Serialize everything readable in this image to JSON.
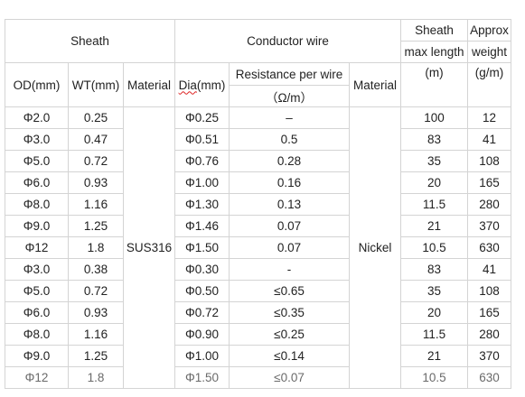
{
  "headers": {
    "sheath": "Sheath",
    "conductor_wire": "Conductor wire",
    "sheath_top": "Sheath",
    "sheath_mid": "max length",
    "sheath_unit": "(m)",
    "approx_top": "Approx",
    "approx_mid": "weight",
    "approx_unit": "(g/m)",
    "od": "OD(mm)",
    "wt": "WT(mm)",
    "material": "Material",
    "dia_prefix": "Dia",
    "dia_suffix": "(mm)",
    "resistance": "Resistance per wire",
    "resistance_unit": "（Ω/m）",
    "material2": "Material"
  },
  "sheath_material": "SUS316",
  "conductor_material": "Nickel",
  "rows": [
    {
      "od": "Φ2.0",
      "wt": "0.25",
      "dia": "Φ0.25",
      "res": "–",
      "len": "100",
      "wgt": "12"
    },
    {
      "od": "Φ3.0",
      "wt": "0.47",
      "dia": "Φ0.51",
      "res": "0.5",
      "len": "83",
      "wgt": "41"
    },
    {
      "od": "Φ5.0",
      "wt": "0.72",
      "dia": "Φ0.76",
      "res": "0.28",
      "len": "35",
      "wgt": "108"
    },
    {
      "od": "Φ6.0",
      "wt": "0.93",
      "dia": "Φ1.00",
      "res": "0.16",
      "len": "20",
      "wgt": "165"
    },
    {
      "od": "Φ8.0",
      "wt": "1.16",
      "dia": "Φ1.30",
      "res": "0.13",
      "len": "11.5",
      "wgt": "280"
    },
    {
      "od": "Φ9.0",
      "wt": "1.25",
      "dia": "Φ1.46",
      "res": "0.07",
      "len": "21",
      "wgt": "370"
    },
    {
      "od": "Φ12",
      "wt": "1.8",
      "dia": "Φ1.50",
      "res": "0.07",
      "len": "10.5",
      "wgt": "630"
    },
    {
      "od": "Φ3.0",
      "wt": "0.38",
      "dia": "Φ0.30",
      "res": "-",
      "len": "83",
      "wgt": "41"
    },
    {
      "od": "Φ5.0",
      "wt": "0.72",
      "dia": "Φ0.50",
      "res": "≤0.65",
      "len": "35",
      "wgt": "108"
    },
    {
      "od": "Φ6.0",
      "wt": "0.93",
      "dia": "Φ0.72",
      "res": "≤0.35",
      "len": "20",
      "wgt": "165"
    },
    {
      "od": "Φ8.0",
      "wt": "1.16",
      "dia": "Φ0.90",
      "res": "≤0.25",
      "len": "11.5",
      "wgt": "280"
    },
    {
      "od": "Φ9.0",
      "wt": "1.25",
      "dia": "Φ1.00",
      "res": "≤0.14",
      "len": "21",
      "wgt": "370"
    },
    {
      "od": "Φ12",
      "wt": "1.8",
      "dia": "Φ1.50",
      "res": "≤0.07",
      "len": "10.5",
      "wgt": "630"
    }
  ]
}
